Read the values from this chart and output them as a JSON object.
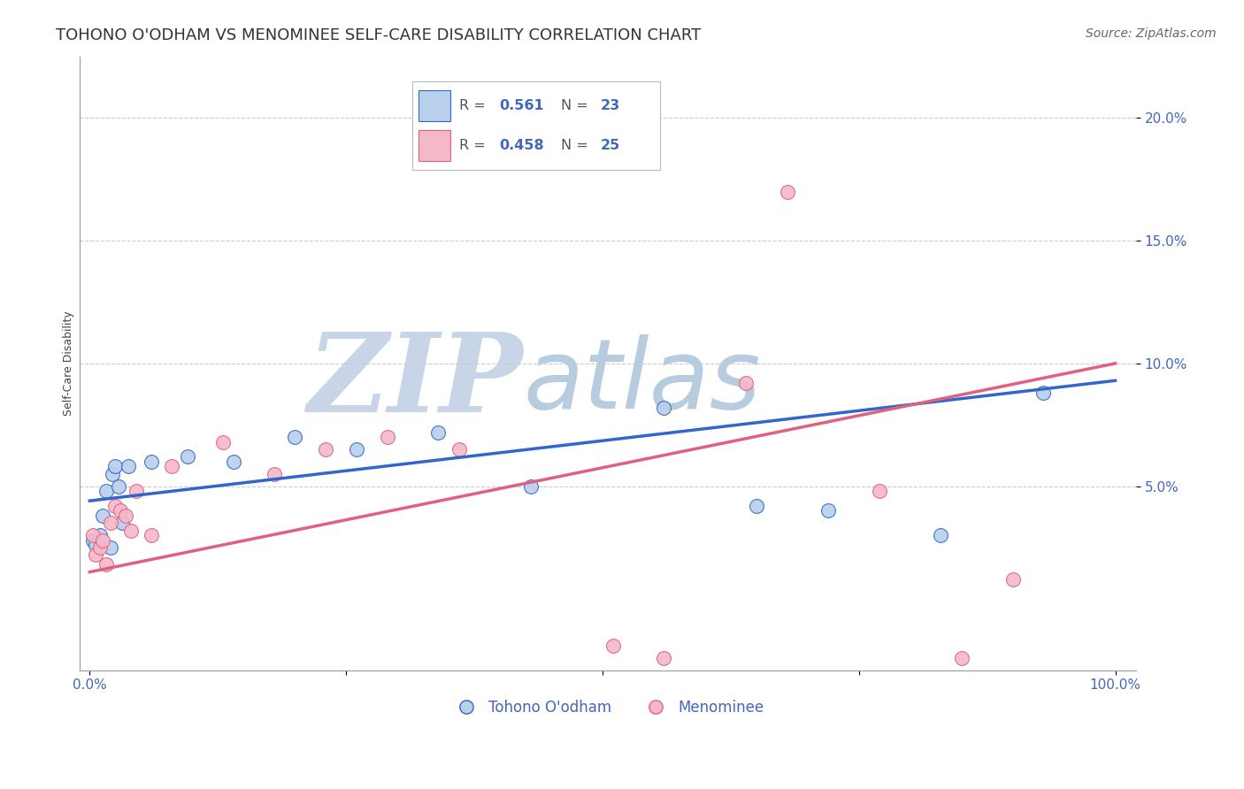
{
  "title": "TOHONO O'ODHAM VS MENOMINEE SELF-CARE DISABILITY CORRELATION CHART",
  "source": "Source: ZipAtlas.com",
  "ylabel": "Self-Care Disability",
  "watermark_zip": "ZIP",
  "watermark_atlas": "atlas",
  "legend_r_blue": "0.561",
  "legend_n_blue": "23",
  "legend_r_pink": "0.458",
  "legend_n_pink": "25",
  "xlim": [
    -0.01,
    1.02
  ],
  "ylim": [
    -0.025,
    0.225
  ],
  "xticks": [
    0.0,
    0.25,
    0.5,
    0.75,
    1.0
  ],
  "xtick_labels": [
    "0.0%",
    "",
    "",
    "",
    "100.0%"
  ],
  "ytick_positions": [
    0.05,
    0.1,
    0.15,
    0.2
  ],
  "ytick_labels": [
    "5.0%",
    "10.0%",
    "15.0%",
    "20.0%"
  ],
  "blue_x": [
    0.003,
    0.006,
    0.01,
    0.013,
    0.016,
    0.02,
    0.022,
    0.025,
    0.028,
    0.032,
    0.038,
    0.06,
    0.095,
    0.14,
    0.2,
    0.26,
    0.34,
    0.43,
    0.56,
    0.65,
    0.72,
    0.83,
    0.93
  ],
  "blue_y": [
    0.028,
    0.026,
    0.03,
    0.038,
    0.048,
    0.025,
    0.055,
    0.058,
    0.05,
    0.035,
    0.058,
    0.06,
    0.062,
    0.06,
    0.07,
    0.065,
    0.072,
    0.05,
    0.082,
    0.042,
    0.04,
    0.03,
    0.088
  ],
  "pink_x": [
    0.003,
    0.006,
    0.01,
    0.013,
    0.016,
    0.02,
    0.025,
    0.03,
    0.035,
    0.04,
    0.045,
    0.06,
    0.08,
    0.13,
    0.18,
    0.23,
    0.29,
    0.36,
    0.51,
    0.56,
    0.64,
    0.68,
    0.77,
    0.85,
    0.9
  ],
  "pink_y": [
    0.03,
    0.022,
    0.025,
    0.028,
    0.018,
    0.035,
    0.042,
    0.04,
    0.038,
    0.032,
    0.048,
    0.03,
    0.058,
    0.068,
    0.055,
    0.065,
    0.07,
    0.065,
    -0.015,
    -0.02,
    0.092,
    0.17,
    0.048,
    -0.02,
    0.012
  ],
  "blue_line_x": [
    0.0,
    1.0
  ],
  "blue_line_y": [
    0.044,
    0.093
  ],
  "pink_line_x": [
    0.0,
    1.0
  ],
  "pink_line_y": [
    0.015,
    0.1
  ],
  "blue_color": "#b8d0ea",
  "pink_color": "#f5b8c8",
  "blue_line_color": "#3366cc",
  "pink_line_color": "#e06080",
  "title_color": "#333333",
  "axis_color": "#4466bb",
  "grid_color": "#cccccc",
  "zip_color": "#c8d4e8",
  "atlas_color": "#b8cce0",
  "background_color": "#ffffff",
  "title_fontsize": 13,
  "axis_label_fontsize": 9,
  "tick_fontsize": 11,
  "legend_fontsize": 12,
  "source_fontsize": 10
}
